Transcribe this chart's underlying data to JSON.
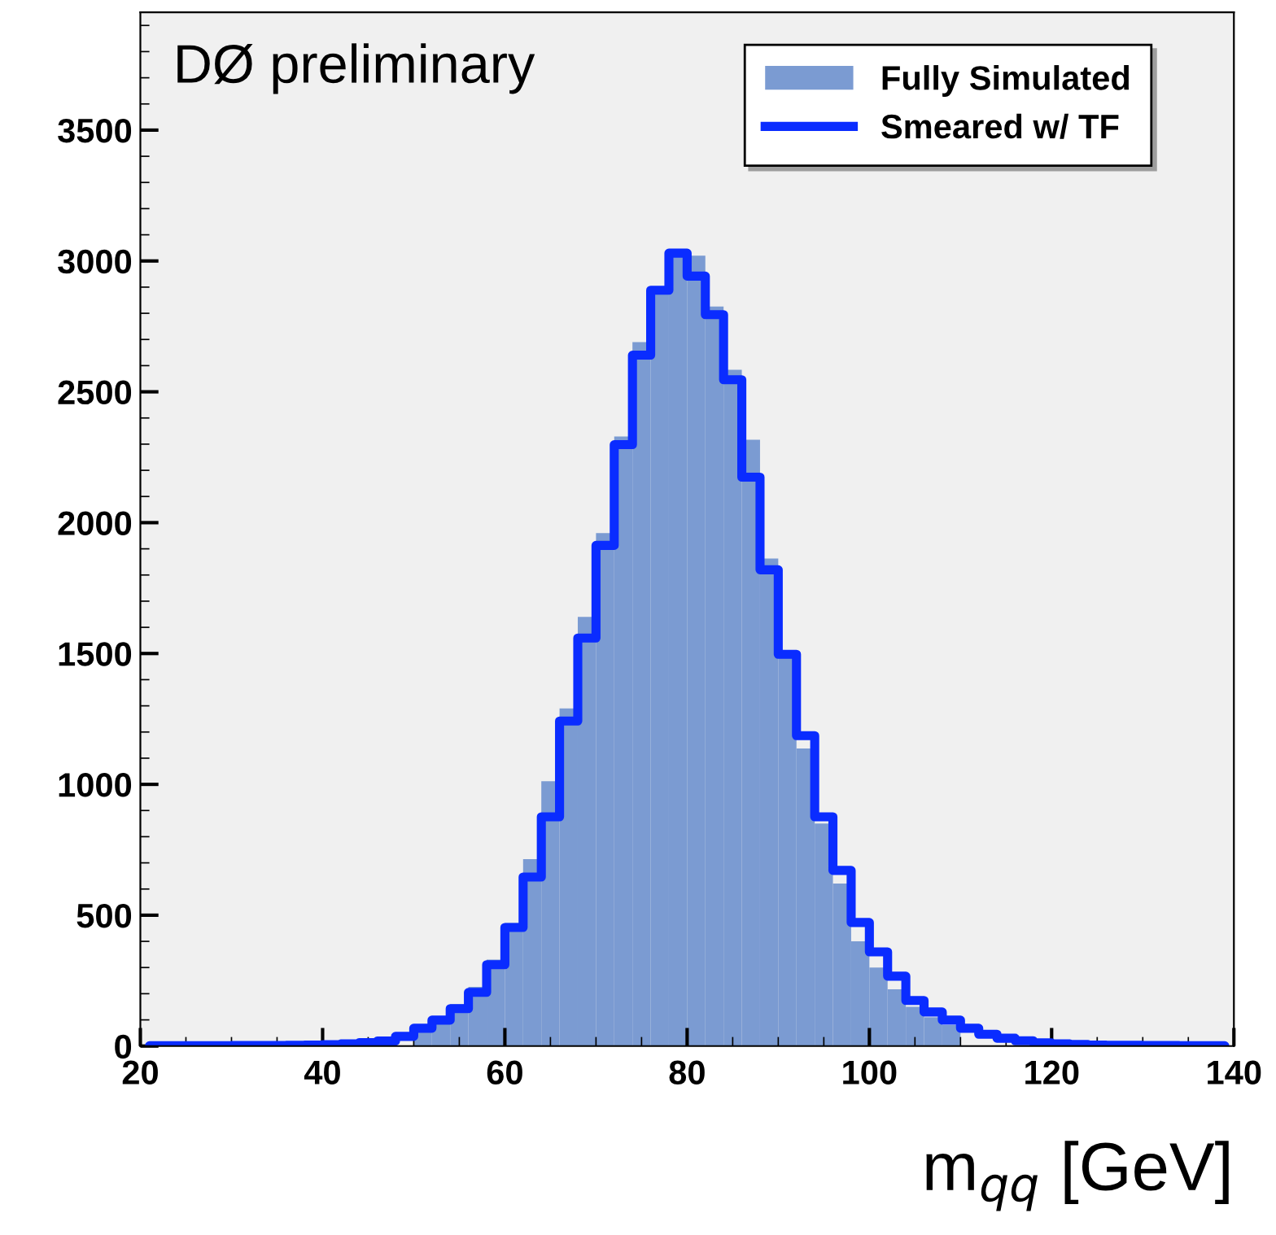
{
  "chart_data": {
    "type": "histogram",
    "annotations": [
      "DØ preliminary"
    ],
    "xlabel": "m$_{qq}$ [GeV]",
    "bins": [
      20,
      22,
      24,
      26,
      28,
      30,
      32,
      34,
      36,
      38,
      40,
      42,
      44,
      46,
      48,
      50,
      52,
      54,
      56,
      58,
      60,
      62,
      64,
      66,
      68,
      70,
      72,
      74,
      76,
      78,
      80,
      82,
      84,
      86,
      88,
      90,
      92,
      94,
      96,
      98,
      100,
      102,
      104,
      106,
      108,
      110,
      112,
      114,
      116,
      118,
      120,
      122,
      124,
      126,
      128,
      130,
      132,
      134,
      136,
      138,
      140
    ],
    "series": [
      {
        "name": "Fully Simulated",
        "color": "#7b9bd2",
        "values": [
          null,
          null,
          null,
          null,
          null,
          null,
          null,
          null,
          null,
          null,
          null,
          null,
          null,
          null,
          null,
          70,
          110,
          160,
          226,
          330,
          470,
          714,
          1012,
          1290,
          1640,
          1960,
          2329,
          2690,
          2900,
          3030,
          3020,
          2826,
          2584,
          2317,
          1863,
          1510,
          1137,
          850,
          621,
          400,
          300,
          217,
          150,
          110,
          80,
          null,
          null,
          null,
          null,
          null,
          null,
          null,
          null,
          null,
          null,
          null,
          null,
          null,
          null,
          null
        ]
      },
      {
        "name": "Smeared w/ TF",
        "type": "step",
        "color": "#0a2cff",
        "x": [
          21,
          23,
          25,
          27,
          29,
          31,
          33,
          35,
          37,
          39,
          41,
          43,
          45,
          47,
          49,
          51,
          53,
          55,
          57,
          59,
          61,
          63,
          65,
          67,
          69,
          71,
          73,
          75,
          77,
          79,
          81,
          83,
          85,
          87,
          89,
          91,
          93,
          95,
          97,
          99,
          101,
          103,
          105,
          107,
          109,
          111,
          113,
          115,
          117,
          119,
          121,
          123,
          125,
          127,
          129,
          131,
          133,
          135,
          137,
          139
        ],
        "values": [
          1,
          1,
          1,
          1,
          1,
          2,
          2,
          2,
          3,
          4,
          5,
          8,
          13,
          19,
          37,
          68,
          99,
          143,
          205,
          311,
          453,
          646,
          876,
          1242,
          1559,
          1913,
          2298,
          2640,
          2888,
          3030,
          2942,
          2795,
          2546,
          2174,
          1820,
          1497,
          1186,
          876,
          671,
          472,
          360,
          267,
          174,
          130,
          99,
          68,
          45,
          30,
          20,
          12,
          8,
          6,
          4,
          3,
          3,
          2,
          2,
          1,
          1,
          1
        ]
      }
    ],
    "xlim": [
      20,
      140
    ],
    "xticks": [
      20,
      40,
      60,
      80,
      100,
      120,
      140
    ],
    "ylim": [
      0,
      3950
    ],
    "yticks": [
      0,
      500,
      1000,
      1500,
      2000,
      2500,
      3000,
      3500
    ],
    "grid": false,
    "legend": "top right"
  }
}
